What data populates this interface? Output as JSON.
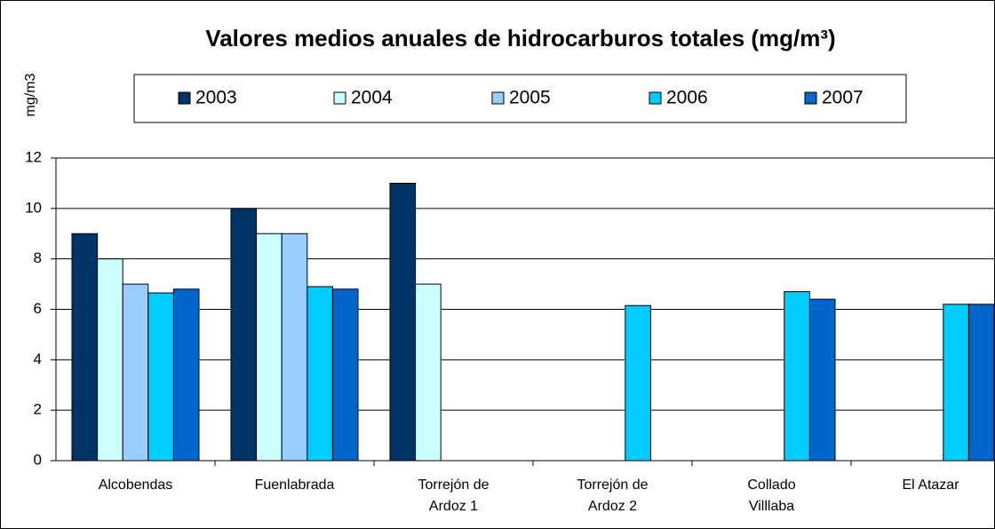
{
  "chart_data": {
    "type": "bar",
    "title": "Valores medios anuales de hidrocarburos totales (mg/m³)",
    "ylabel": "mg/m3",
    "categories": [
      "Alcobendas",
      "Fuenlabrada",
      "Torrejón de\nArdoz 1",
      "Torrejón de\nArdoz 2",
      "Collado\nVilllaba",
      "El Atazar"
    ],
    "series": [
      {
        "name": "2003",
        "color": "#003366",
        "values": [
          9,
          10,
          11,
          null,
          null,
          null
        ]
      },
      {
        "name": "2004",
        "color": "#ccffff",
        "values": [
          8,
          9,
          7,
          null,
          null,
          null
        ]
      },
      {
        "name": "2005",
        "color": "#99ccff",
        "values": [
          7,
          9,
          null,
          null,
          null,
          null
        ]
      },
      {
        "name": "2006",
        "color": "#00ccff",
        "values": [
          6.65,
          6.9,
          null,
          6.15,
          6.7,
          6.2
        ]
      },
      {
        "name": "2007",
        "color": "#0066cc",
        "values": [
          6.8,
          6.8,
          null,
          null,
          6.4,
          6.2
        ]
      }
    ],
    "ylim": [
      0,
      12
    ],
    "yticks": [
      0,
      2,
      4,
      6,
      8,
      10,
      12
    ],
    "grid": true,
    "legend": "top"
  }
}
